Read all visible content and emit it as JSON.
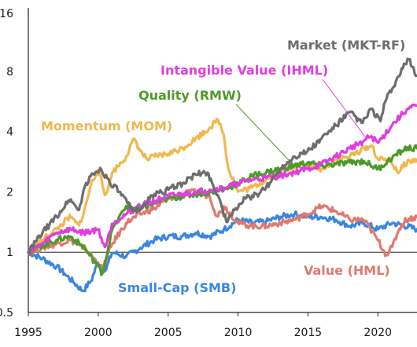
{
  "chart_data": {
    "type": "line",
    "y_scale": "log2",
    "xlim": [
      1995,
      2022.8
    ],
    "ylim": [
      0.5,
      16
    ],
    "x_ticks": [
      {
        "value": 1995,
        "label": "1995"
      },
      {
        "value": 2000,
        "label": "2000"
      },
      {
        "value": 2005,
        "label": "2005"
      },
      {
        "value": 2010,
        "label": "2010"
      },
      {
        "value": 2015,
        "label": "2015"
      },
      {
        "value": 2020,
        "label": "2020"
      }
    ],
    "y_ticks": [
      {
        "value": 0.5,
        "label": "0.5"
      },
      {
        "value": 1,
        "label": "1"
      },
      {
        "value": 2,
        "label": "2"
      },
      {
        "value": 4,
        "label": "4"
      },
      {
        "value": 8,
        "label": "8"
      },
      {
        "value": 16,
        "label": "16"
      }
    ],
    "reference_line": 1,
    "series": [
      {
        "name": "Market (MKT-RF)",
        "color": "#6d6d6d",
        "x": [
          1995,
          1996,
          1997,
          1998,
          1998.6,
          1999,
          1999.6,
          2000.2,
          2000.8,
          2001.5,
          2002.5,
          2003.2,
          2004,
          2005,
          2006,
          2007,
          2007.8,
          2008.6,
          2009.2,
          2009.8,
          2010.5,
          2011.5,
          2012,
          2013,
          2014,
          2015,
          2016,
          2017,
          2018,
          2018.9,
          2019.5,
          2020.2,
          2020.5,
          2021,
          2021.8,
          2022.2,
          2022.8
        ],
        "y": [
          1.0,
          1.25,
          1.5,
          1.85,
          1.6,
          2.1,
          2.45,
          2.6,
          2.25,
          2.0,
          1.6,
          1.7,
          1.95,
          2.05,
          2.2,
          2.45,
          2.5,
          1.9,
          1.4,
          1.65,
          1.85,
          1.95,
          2.1,
          2.6,
          3.0,
          3.2,
          3.7,
          4.3,
          5.0,
          4.4,
          5.2,
          4.5,
          5.6,
          6.5,
          8.3,
          9.2,
          7.6
        ]
      },
      {
        "name": "Intangible Value (IHML)",
        "color": "#e03ee0",
        "x": [
          1995,
          1996,
          1997,
          1998,
          1999,
          2000,
          2000.5,
          2001,
          2002,
          2003,
          2004,
          2005,
          2006,
          2007,
          2008,
          2009,
          2010,
          2011,
          2012,
          2013,
          2014,
          2015,
          2016,
          2017,
          2018,
          2019,
          2019.5,
          2020,
          2021,
          2022,
          2022.8
        ],
        "y": [
          1.0,
          1.1,
          1.25,
          1.3,
          1.25,
          1.3,
          1.05,
          1.4,
          1.55,
          1.7,
          1.8,
          1.9,
          1.95,
          2.0,
          2.05,
          2.1,
          2.2,
          2.3,
          2.35,
          2.4,
          2.5,
          2.6,
          2.75,
          3.0,
          3.3,
          3.6,
          3.8,
          3.5,
          4.3,
          5.1,
          5.4
        ]
      },
      {
        "name": "Quality (RMW)",
        "color": "#4d9a2a",
        "x": [
          1995,
          1996,
          1997,
          1998,
          1999,
          2000,
          2000.3,
          2001,
          2002,
          2003,
          2004,
          2005,
          2006,
          2007,
          2008,
          2009,
          2010,
          2011,
          2012,
          2013,
          2014,
          2015,
          2016,
          2017,
          2018,
          2019,
          2020,
          2021,
          2022,
          2022.8
        ],
        "y": [
          1.0,
          1.08,
          1.15,
          1.2,
          1.05,
          0.85,
          0.78,
          1.3,
          1.7,
          1.65,
          1.75,
          1.85,
          1.9,
          1.95,
          2.0,
          2.05,
          2.2,
          2.4,
          2.5,
          2.6,
          2.7,
          2.8,
          2.7,
          2.75,
          2.8,
          2.85,
          2.6,
          2.95,
          3.3,
          3.3
        ]
      },
      {
        "name": "Momentum (MOM)",
        "color": "#f0b84f",
        "x": [
          1995,
          1996,
          1997,
          1998,
          1998.6,
          1999,
          1999.5,
          2000,
          2000.5,
          2001,
          2002,
          2002.6,
          2003,
          2003.5,
          2004,
          2005,
          2006,
          2007,
          2008,
          2008.6,
          2009,
          2009.3,
          2009.8,
          2010,
          2011,
          2012,
          2013,
          2014,
          2015,
          2016,
          2017,
          2018,
          2019,
          2019.6,
          2020,
          2020.8,
          2021.5,
          2022,
          2022.8
        ],
        "y": [
          1.0,
          1.15,
          1.3,
          1.5,
          1.35,
          1.6,
          2.2,
          2.6,
          1.9,
          2.5,
          3.0,
          3.7,
          3.2,
          2.9,
          3.0,
          3.1,
          3.3,
          3.7,
          4.2,
          4.6,
          3.8,
          2.6,
          2.2,
          2.0,
          2.1,
          2.3,
          2.5,
          2.7,
          2.7,
          2.6,
          2.9,
          3.0,
          3.3,
          3.4,
          2.9,
          2.9,
          2.5,
          2.8,
          2.9
        ]
      },
      {
        "name": "Value (HML)",
        "color": "#e07a6e",
        "x": [
          1995,
          1996,
          1997,
          1998,
          1999,
          2000,
          2000.3,
          2001,
          2002,
          2003,
          2004,
          2005,
          2006,
          2007,
          2008,
          2008.5,
          2009,
          2010,
          2011,
          2012,
          2013,
          2014,
          2015,
          2016,
          2017,
          2018,
          2019,
          2020,
          2020.6,
          2021,
          2021.5,
          2022,
          2022.8
        ],
        "y": [
          1.0,
          1.05,
          1.1,
          1.15,
          1.05,
          0.88,
          0.82,
          1.1,
          1.4,
          1.55,
          1.65,
          1.85,
          1.95,
          2.0,
          1.9,
          1.5,
          1.7,
          1.4,
          1.35,
          1.35,
          1.4,
          1.45,
          1.55,
          1.7,
          1.6,
          1.45,
          1.45,
          1.15,
          0.97,
          1.05,
          1.3,
          1.45,
          1.5
        ]
      },
      {
        "name": "Small-Cap (SMB)",
        "color": "#3a86e0",
        "x": [
          1995,
          1996,
          1997,
          1997.6,
          1998.3,
          1998.9,
          1999.5,
          2000,
          2000.5,
          2001,
          2002,
          2003,
          2004,
          2005,
          2006,
          2007,
          2008,
          2009,
          2010,
          2011,
          2012,
          2013,
          2014,
          2015,
          2016,
          2017,
          2018,
          2019,
          2020,
          2021,
          2022,
          2022.8
        ],
        "y": [
          1.0,
          0.93,
          0.85,
          0.78,
          0.7,
          0.64,
          0.72,
          0.9,
          0.8,
          1.0,
          0.95,
          1.05,
          1.15,
          1.2,
          1.2,
          1.25,
          1.2,
          1.3,
          1.45,
          1.4,
          1.42,
          1.5,
          1.55,
          1.5,
          1.5,
          1.45,
          1.35,
          1.4,
          1.3,
          1.4,
          1.35,
          1.3
        ]
      }
    ],
    "labels": [
      {
        "text": "Market (MKT-RF)",
        "color": "#6d6d6d"
      },
      {
        "text": "Intangible Value (IHML)",
        "color": "#e03ee0"
      },
      {
        "text": "Quality (RMW)",
        "color": "#4d9a2a"
      },
      {
        "text": "Momentum (MOM)",
        "color": "#f0b84f"
      },
      {
        "text": "Value (HML)",
        "color": "#e07a6e"
      },
      {
        "text": "Small-Cap (SMB)",
        "color": "#3a86e0"
      }
    ],
    "label_pointers": [
      {
        "series": "Intangible Value (IHML)",
        "at_x": 2019.2
      },
      {
        "series": "Quality (RMW)",
        "at_x": 2014
      }
    ]
  }
}
